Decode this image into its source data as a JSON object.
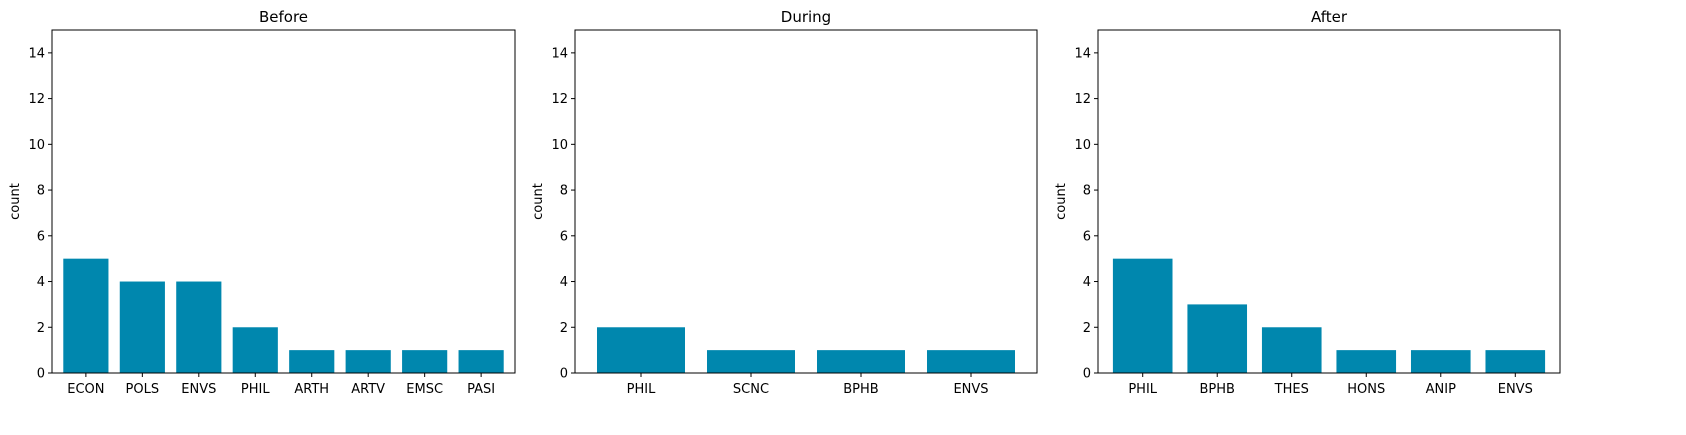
{
  "colors": {
    "bar": "#0087ae",
    "axis": "#000000",
    "background": "#ffffff"
  },
  "chart_data": [
    {
      "type": "bar",
      "title": "Before",
      "xlabel": "",
      "ylabel": "count",
      "ylim": [
        0,
        15
      ],
      "yticks": [
        0,
        2,
        4,
        6,
        8,
        10,
        12,
        14
      ],
      "grid": false,
      "categories": [
        "ECON",
        "POLS",
        "ENVS",
        "PHIL",
        "ARTH",
        "ARTV",
        "EMSC",
        "PASI"
      ],
      "values": [
        5,
        4,
        4,
        2,
        1,
        1,
        1,
        1
      ]
    },
    {
      "type": "bar",
      "title": "During",
      "xlabel": "",
      "ylabel": "count",
      "ylim": [
        0,
        15
      ],
      "yticks": [
        0,
        2,
        4,
        6,
        8,
        10,
        12,
        14
      ],
      "grid": false,
      "categories": [
        "PHIL",
        "SCNC",
        "BPHB",
        "ENVS"
      ],
      "values": [
        2,
        1,
        1,
        1
      ]
    },
    {
      "type": "bar",
      "title": "After",
      "xlabel": "",
      "ylabel": "count",
      "ylim": [
        0,
        15
      ],
      "yticks": [
        0,
        2,
        4,
        6,
        8,
        10,
        12,
        14
      ],
      "grid": false,
      "categories": [
        "PHIL",
        "BPHB",
        "THES",
        "HONS",
        "ANIP",
        "ENVS"
      ],
      "values": [
        5,
        3,
        2,
        1,
        1,
        1
      ]
    }
  ]
}
